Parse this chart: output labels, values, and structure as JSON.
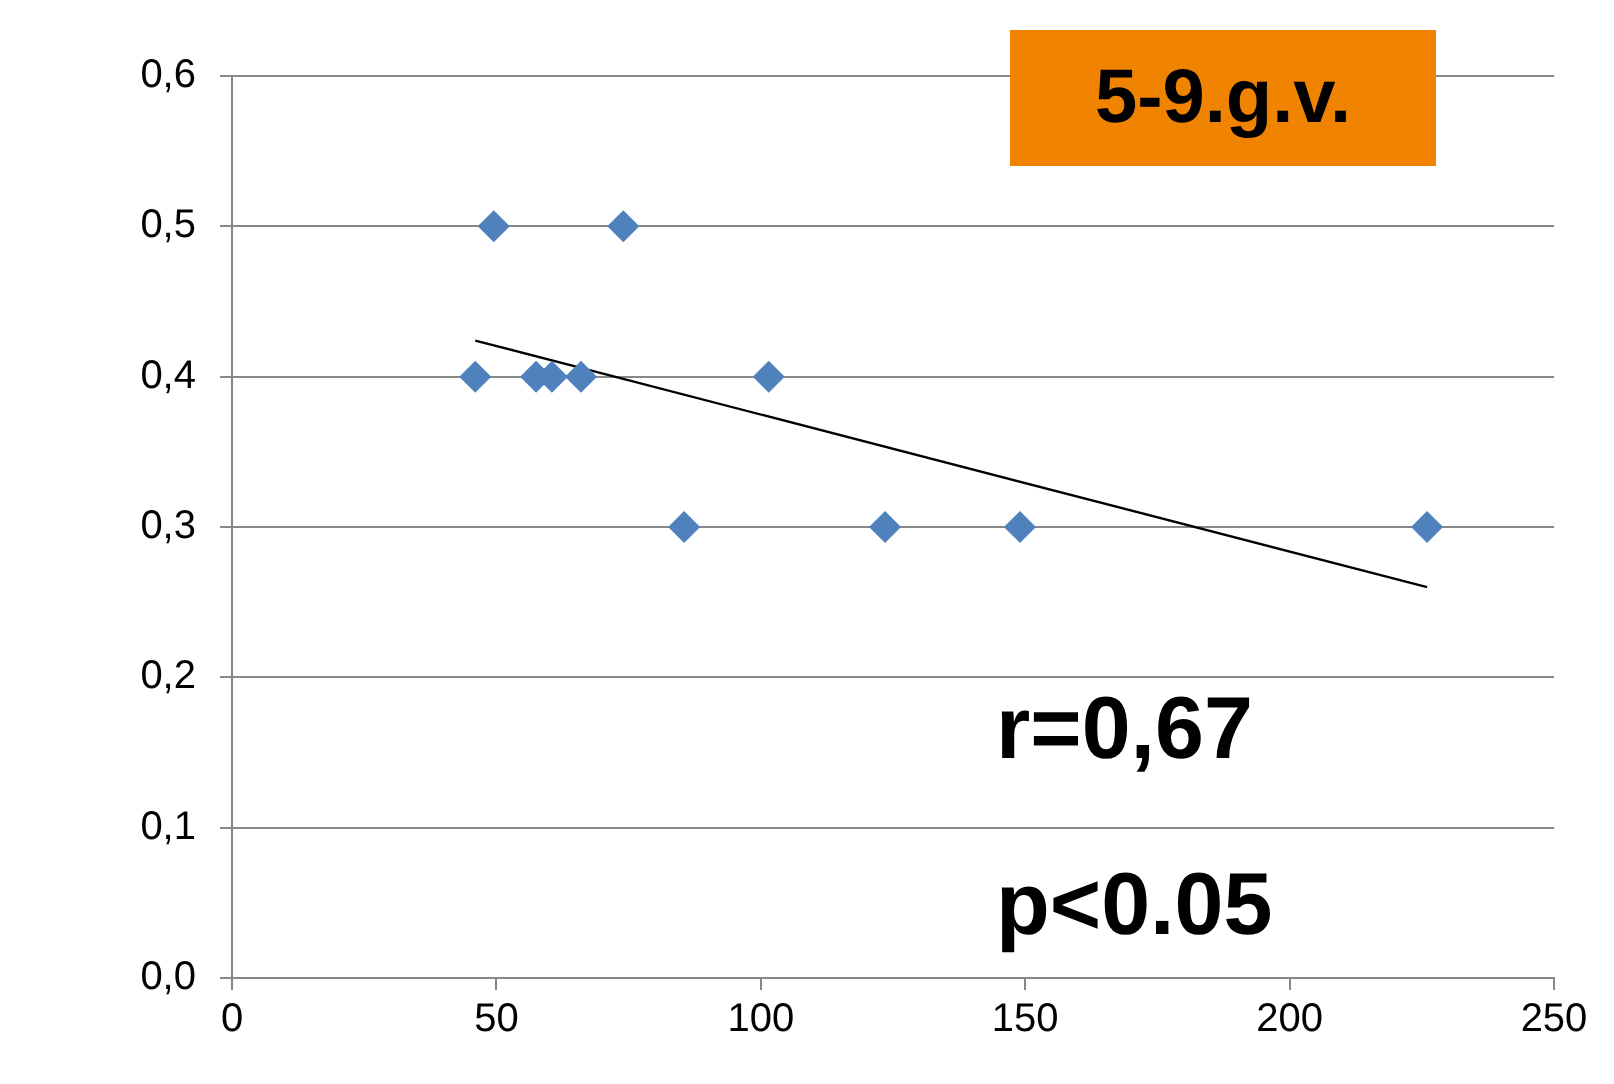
{
  "chart_data": {
    "type": "scatter",
    "x": [
      46,
      49.5,
      57.5,
      60.5,
      66,
      74,
      85.5,
      101.5,
      123.5,
      149,
      226
    ],
    "series": [
      {
        "type": "scatter",
        "color": "#4f81bd",
        "marker": "diamond",
        "values": [
          0.4,
          0.5,
          0.4,
          0.4,
          0.4,
          0.5,
          0.3,
          0.4,
          0.3,
          0.3,
          0.3
        ]
      },
      {
        "type": "line",
        "color": "#000000",
        "marker": "none",
        "x": [
          46,
          226
        ],
        "values": [
          0.424,
          0.26
        ]
      }
    ],
    "xlim": [
      0,
      250
    ],
    "xticks": [
      0,
      50,
      100,
      150,
      200,
      250
    ],
    "ylim": [
      0,
      0.6
    ],
    "yticks": [
      {
        "value": 0,
        "label": "0,0"
      },
      {
        "value": 0.1,
        "label": "0,1"
      },
      {
        "value": 0.2,
        "label": "0,2"
      },
      {
        "value": 0.3,
        "label": "0,3"
      },
      {
        "value": 0.4,
        "label": "0,4"
      },
      {
        "value": 0.5,
        "label": "0,5"
      },
      {
        "value": 0.6,
        "label": "0,6"
      }
    ],
    "grid": "y",
    "legend": false,
    "annotations": [
      "5-9.g.v.",
      "r=0,67",
      "p<0.05"
    ]
  }
}
